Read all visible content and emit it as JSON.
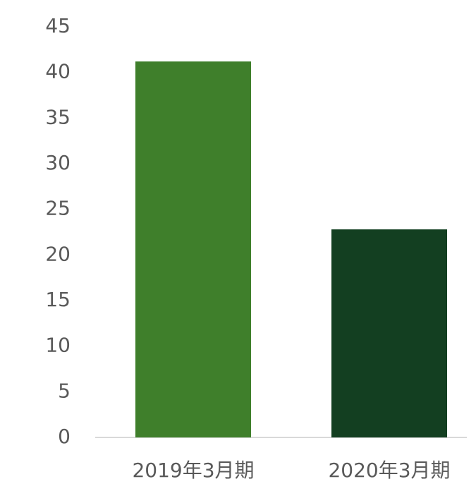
{
  "chart_data": {
    "type": "bar",
    "categories": [
      "2019年3月期",
      "2020年3月期"
    ],
    "values": [
      41.2,
      22.8
    ],
    "colors": [
      "#3f7f2b",
      "#133f21"
    ],
    "ylim": [
      0,
      45
    ],
    "yticks": [
      0,
      5,
      10,
      15,
      20,
      25,
      30,
      35,
      40,
      45
    ],
    "grid": false
  }
}
